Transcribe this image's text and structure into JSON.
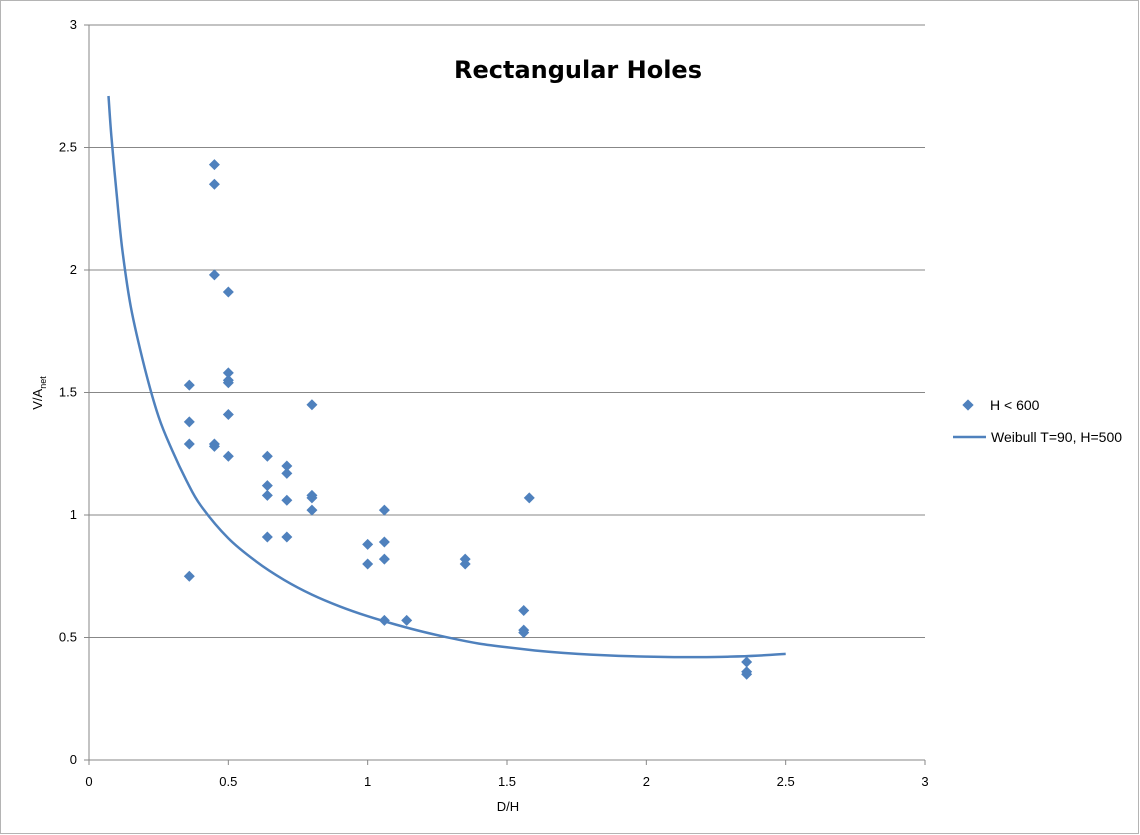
{
  "chart_data": {
    "type": "scatter",
    "title": "Rectangular Holes",
    "xlabel": "D/H",
    "ylabel_main": "V/A",
    "ylabel_sub": "net",
    "xlim": [
      0,
      3
    ],
    "ylim": [
      0,
      3
    ],
    "x_ticks": [
      "0",
      "0.5",
      "1",
      "1.5",
      "2",
      "2.5",
      "3"
    ],
    "y_ticks": [
      "0",
      "0.5",
      "1",
      "1.5",
      "2",
      "2.5",
      "3"
    ],
    "grid": "horizontal",
    "legend_position": "right",
    "colors": {
      "series": "#4F81BD",
      "grid": "#878787",
      "axis": "#878787"
    },
    "series": [
      {
        "name": "H < 600",
        "kind": "scatter",
        "marker": "diamond",
        "points": [
          [
            0.36,
            1.53
          ],
          [
            0.36,
            1.38
          ],
          [
            0.36,
            1.29
          ],
          [
            0.36,
            0.75
          ],
          [
            0.45,
            2.43
          ],
          [
            0.45,
            2.35
          ],
          [
            0.45,
            1.98
          ],
          [
            0.45,
            1.29
          ],
          [
            0.45,
            1.28
          ],
          [
            0.5,
            1.91
          ],
          [
            0.5,
            1.58
          ],
          [
            0.5,
            1.55
          ],
          [
            0.5,
            1.54
          ],
          [
            0.5,
            1.41
          ],
          [
            0.5,
            1.24
          ],
          [
            0.64,
            1.24
          ],
          [
            0.64,
            1.12
          ],
          [
            0.64,
            1.08
          ],
          [
            0.64,
            0.91
          ],
          [
            0.71,
            1.2
          ],
          [
            0.71,
            1.17
          ],
          [
            0.71,
            1.06
          ],
          [
            0.71,
            0.91
          ],
          [
            0.8,
            1.45
          ],
          [
            0.8,
            1.08
          ],
          [
            0.8,
            1.07
          ],
          [
            0.8,
            1.02
          ],
          [
            1.0,
            0.88
          ],
          [
            1.0,
            0.8
          ],
          [
            1.06,
            1.02
          ],
          [
            1.06,
            0.89
          ],
          [
            1.06,
            0.82
          ],
          [
            1.06,
            0.57
          ],
          [
            1.14,
            0.57
          ],
          [
            1.35,
            0.82
          ],
          [
            1.35,
            0.8
          ],
          [
            1.56,
            0.61
          ],
          [
            1.56,
            0.53
          ],
          [
            1.56,
            0.52
          ],
          [
            1.58,
            1.07
          ],
          [
            2.36,
            0.4
          ],
          [
            2.36,
            0.36
          ],
          [
            2.36,
            0.35
          ]
        ]
      },
      {
        "name": "Weibull T=90, H=500",
        "kind": "line",
        "points": [
          [
            0.07,
            2.71
          ],
          [
            0.08,
            2.55
          ],
          [
            0.1,
            2.3
          ],
          [
            0.12,
            2.08
          ],
          [
            0.15,
            1.85
          ],
          [
            0.2,
            1.6
          ],
          [
            0.25,
            1.4
          ],
          [
            0.3,
            1.26
          ],
          [
            0.35,
            1.14
          ],
          [
            0.4,
            1.04
          ],
          [
            0.5,
            0.905
          ],
          [
            0.6,
            0.81
          ],
          [
            0.7,
            0.735
          ],
          [
            0.8,
            0.675
          ],
          [
            0.9,
            0.627
          ],
          [
            1.0,
            0.587
          ],
          [
            1.1,
            0.553
          ],
          [
            1.2,
            0.523
          ],
          [
            1.3,
            0.497
          ],
          [
            1.4,
            0.475
          ],
          [
            1.5,
            0.46
          ],
          [
            1.6,
            0.447
          ],
          [
            1.7,
            0.437
          ],
          [
            1.8,
            0.43
          ],
          [
            1.9,
            0.425
          ],
          [
            2.0,
            0.422
          ],
          [
            2.1,
            0.42
          ],
          [
            2.2,
            0.42
          ],
          [
            2.3,
            0.422
          ],
          [
            2.4,
            0.426
          ],
          [
            2.5,
            0.433
          ]
        ]
      }
    ]
  }
}
